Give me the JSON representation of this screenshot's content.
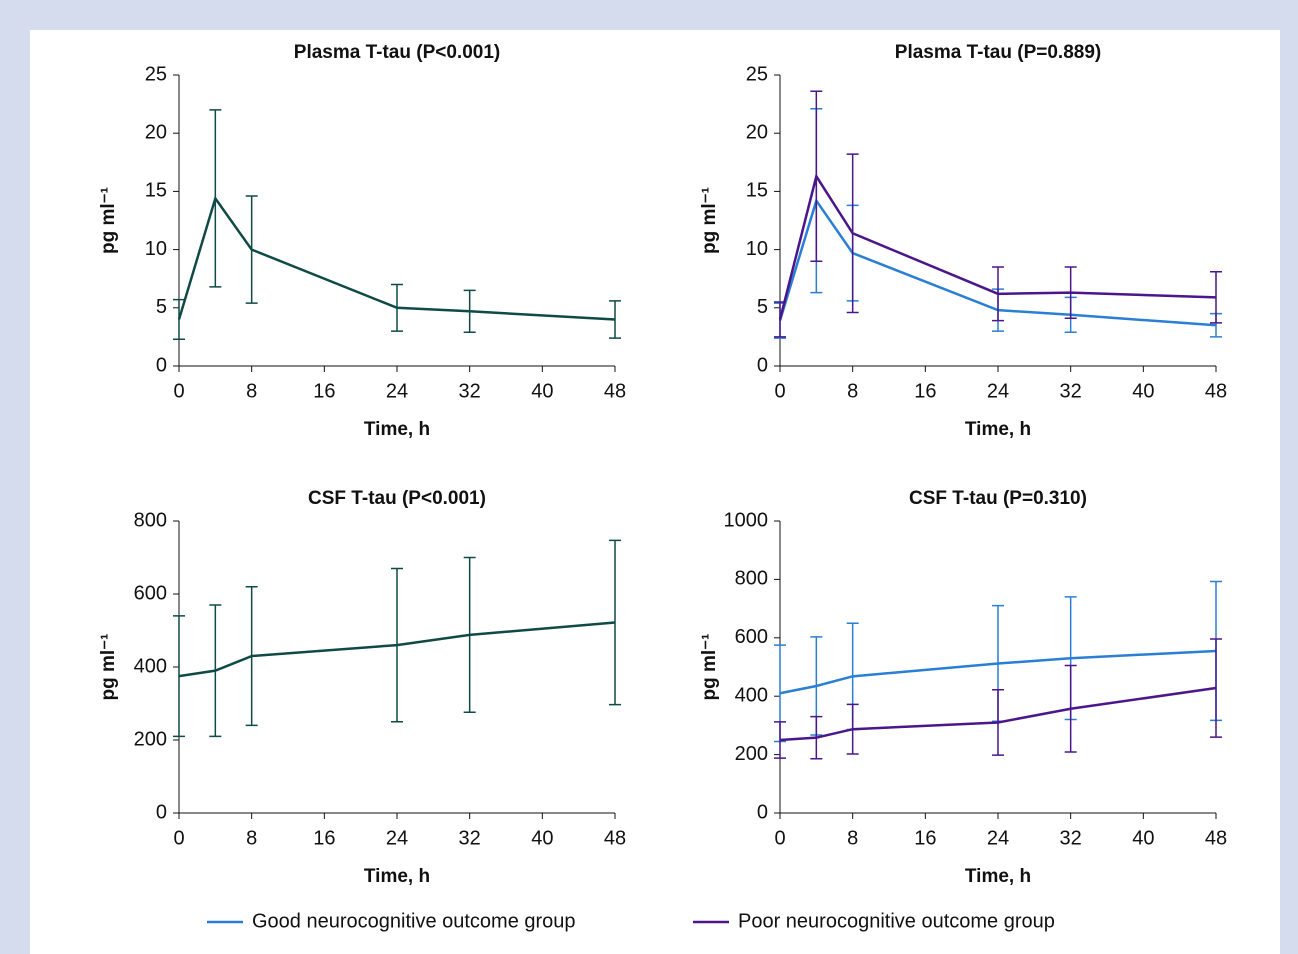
{
  "chart_data": [
    {
      "type": "line",
      "title": "Plasma T-tau (P<0.001)",
      "x_label": "Time, h",
      "y_label": "pg ml⁻¹",
      "x": [
        0,
        4,
        8,
        24,
        32,
        48
      ],
      "xlim": [
        0,
        48
      ],
      "xticks": [
        0,
        8,
        16,
        24,
        32,
        40,
        48
      ],
      "ylim": [
        0,
        25
      ],
      "yticks": [
        0,
        5,
        10,
        15,
        20,
        25
      ],
      "series": [
        {
          "color": "#0f4a47",
          "values": [
            4.0,
            14.4,
            10.0,
            5.0,
            4.7,
            4.0
          ],
          "errors": [
            1.7,
            7.6,
            4.6,
            2.0,
            1.8,
            1.6
          ]
        }
      ]
    },
    {
      "type": "line",
      "title": "Plasma T-tau (P=0.889)",
      "x_label": "Time, h",
      "y_label": "pg ml⁻¹",
      "x": [
        0,
        4,
        8,
        24,
        32,
        48
      ],
      "xlim": [
        0,
        48
      ],
      "xticks": [
        0,
        8,
        16,
        24,
        32,
        40,
        48
      ],
      "ylim": [
        0,
        25
      ],
      "yticks": [
        0,
        5,
        10,
        15,
        20,
        25
      ],
      "series": [
        {
          "name": "Good neurocognitive outcome group",
          "color": "#2a7fd4",
          "values": [
            3.9,
            14.2,
            9.7,
            4.8,
            4.4,
            3.5
          ],
          "errors": [
            1.5,
            7.9,
            4.1,
            1.8,
            1.5,
            1.0
          ]
        },
        {
          "name": "Poor neurocognitive outcome group",
          "color": "#4a168a",
          "values": [
            4.0,
            16.3,
            11.4,
            6.2,
            6.3,
            5.9
          ],
          "errors": [
            1.5,
            7.3,
            6.8,
            2.3,
            2.2,
            2.2
          ]
        }
      ]
    },
    {
      "type": "line",
      "title": "CSF T-tau (P<0.001)",
      "x_label": "Time, h",
      "y_label": "pg ml⁻¹",
      "x": [
        0,
        4,
        8,
        24,
        32,
        48
      ],
      "xlim": [
        0,
        48
      ],
      "xticks": [
        0,
        8,
        16,
        24,
        32,
        40,
        48
      ],
      "ylim": [
        0,
        800
      ],
      "yticks": [
        0,
        200,
        400,
        600,
        800
      ],
      "series": [
        {
          "color": "#0f4a47",
          "values": [
            375,
            390,
            430,
            460,
            488,
            522
          ],
          "errors": [
            165,
            180,
            190,
            210,
            212,
            225
          ]
        }
      ]
    },
    {
      "type": "line",
      "title": "CSF T-tau (P=0.310)",
      "x_label": "Time, h",
      "y_label": "pg ml⁻¹",
      "x": [
        0,
        4,
        8,
        24,
        32,
        48
      ],
      "xlim": [
        0,
        48
      ],
      "xticks": [
        0,
        8,
        16,
        24,
        32,
        40,
        48
      ],
      "ylim": [
        0,
        1000
      ],
      "yticks": [
        0,
        200,
        400,
        600,
        800,
        1000
      ],
      "series": [
        {
          "name": "Good neurocognitive outcome group",
          "color": "#2a7fd4",
          "values": [
            410,
            435,
            468,
            512,
            530,
            555
          ],
          "errors": [
            165,
            168,
            182,
            198,
            210,
            238
          ]
        },
        {
          "name": "Poor neurocognitive outcome group",
          "color": "#4a168a",
          "values": [
            250,
            258,
            287,
            310,
            357,
            428
          ],
          "errors": [
            62,
            72,
            85,
            112,
            148,
            168
          ]
        }
      ]
    }
  ]
}
